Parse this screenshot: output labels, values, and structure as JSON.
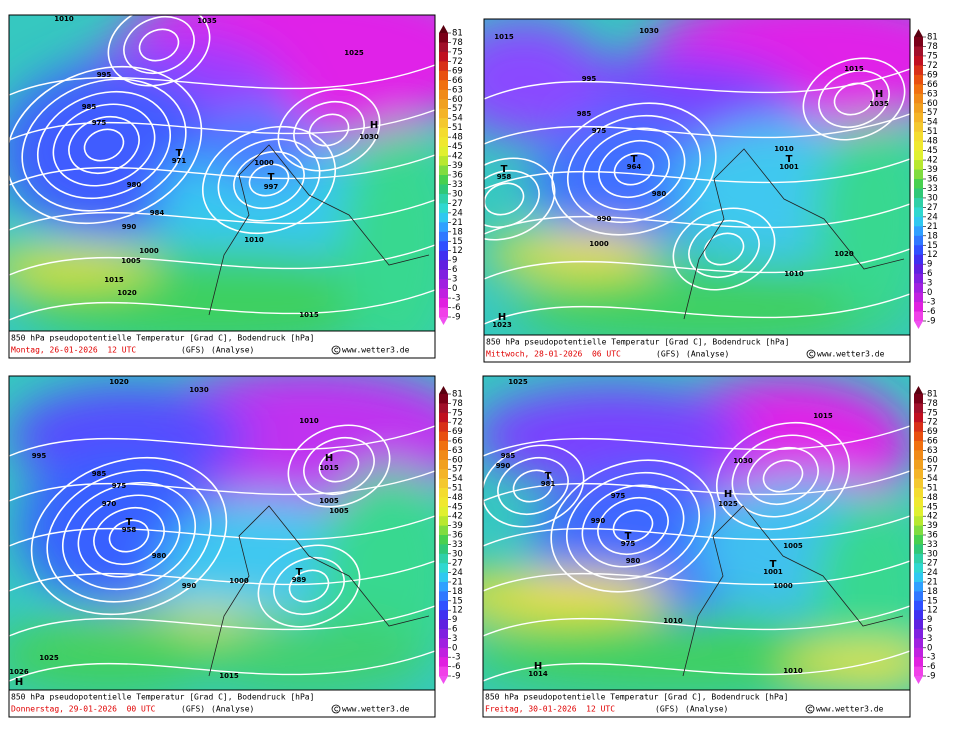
{
  "colorbar": {
    "ticks": [
      81,
      78,
      75,
      72,
      69,
      66,
      63,
      60,
      57,
      54,
      51,
      48,
      45,
      42,
      39,
      36,
      33,
      30,
      27,
      24,
      21,
      18,
      15,
      12,
      9,
      6,
      3,
      0,
      -3,
      -6,
      -9
    ]
  },
  "panels": [
    {
      "caption": "850 hPa pseudopotentielle Temperatur [Grad C], Bodendruck [hPa]",
      "date": "Montag, 26-01-2026  12 UTC",
      "model": "(GFS)",
      "run": "(Analyse)",
      "credit": "www.wetter3.de",
      "pressure_labels": [
        "1010",
        "995",
        "985",
        "975",
        "T",
        "971",
        "980",
        "984",
        "990",
        "1000",
        "1005",
        "1015",
        "1035",
        "1025",
        "H",
        "1030",
        "1000",
        "T",
        "997",
        "1010",
        "1015",
        "1020"
      ]
    },
    {
      "caption": "850 hPa pseudopotentielle Temperatur [Grad C], Bodendruck [hPa]",
      "date": "Mittwoch, 28-01-2026  06 UTC",
      "model": "(GFS)",
      "run": "(Analyse)",
      "credit": "www.wetter3.de",
      "pressure_labels": [
        "1015",
        "995",
        "985",
        "975",
        "T",
        "964",
        "980",
        "T",
        "958",
        "990",
        "1000",
        "1010",
        "1030",
        "H",
        "1035",
        "1015",
        "1010",
        "T",
        "1001",
        "1020",
        "H",
        "1023"
      ]
    },
    {
      "caption": "850 hPa pseudopotentielle Temperatur [Grad C], Bodendruck [hPa]",
      "date": "Donnerstag, 29-01-2026  00 UTC",
      "model": "(GFS)",
      "run": "(Analyse)",
      "credit": "www.wetter3.de",
      "pressure_labels": [
        "1020",
        "995",
        "985",
        "975",
        "T",
        "958",
        "970",
        "980",
        "990",
        "1000",
        "1005",
        "1015",
        "1030",
        "H",
        "1015",
        "1010",
        "1005",
        "T",
        "989",
        "1025",
        "H",
        "1026"
      ]
    },
    {
      "caption": "850 hPa pseudopotentielle Temperatur [Grad C], Bodendruck [hPa]",
      "date": "Freitag, 30-01-2026  12 UTC",
      "model": "(GFS)",
      "run": "(Analyse)",
      "credit": "www.wetter3.de",
      "pressure_labels": [
        "1025",
        "990",
        "985",
        "T",
        "981",
        "975",
        "980",
        "T",
        "975",
        "990",
        "1000",
        "1010",
        "1030",
        "H",
        "1025",
        "1015",
        "1005",
        "T",
        "1001",
        "1010",
        "H",
        "1014"
      ]
    }
  ]
}
